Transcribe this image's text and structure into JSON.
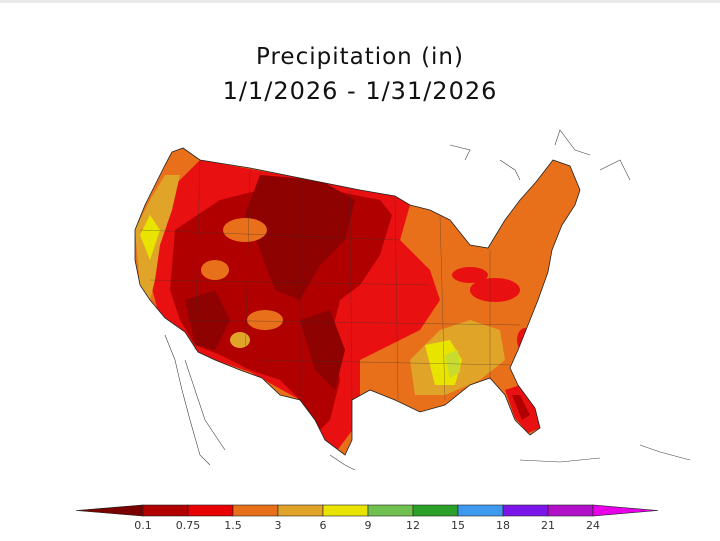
{
  "title": "Precipitation (in)",
  "subtitle": "1/1/2026 - 1/31/2026",
  "legend": {
    "labels": [
      "0.1",
      "0.75",
      "1.5",
      "3",
      "6",
      "9",
      "12",
      "15",
      "18",
      "21",
      "24"
    ],
    "colors": [
      "#7a0000",
      "#b00000",
      "#e80000",
      "#e8701a",
      "#e0a428",
      "#e8e400",
      "#70c050",
      "#2aa028",
      "#3e9aef",
      "#7a17e8",
      "#b010c8",
      "#e800e8"
    ]
  },
  "map": {
    "region": "Contiguous United States",
    "colors": {
      "driest": "#8e0202",
      "very_dry": "#b00000",
      "dry": "#e81010",
      "moderate": "#e8701a",
      "wetter": "#e0a428",
      "wettest": "#e8e400"
    }
  }
}
